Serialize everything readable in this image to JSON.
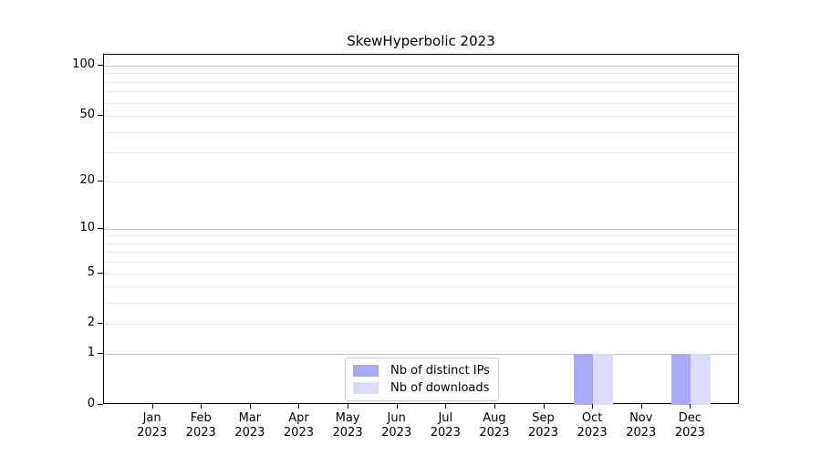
{
  "chart_data": {
    "type": "bar",
    "title": "SkewHyperbolic 2023",
    "categories": [
      "Jan\n2023",
      "Feb\n2023",
      "Mar\n2023",
      "Apr\n2023",
      "May\n2023",
      "Jun\n2023",
      "Jul\n2023",
      "Aug\n2023",
      "Sep\n2023",
      "Oct\n2023",
      "Nov\n2023",
      "Dec\n2023"
    ],
    "series": [
      {
        "name": "Nb of distinct IPs",
        "color": "#a9a9f5",
        "values": [
          0,
          0,
          0,
          0,
          0,
          0,
          0,
          0,
          0,
          1,
          0,
          1
        ]
      },
      {
        "name": "Nb of downloads",
        "color": "#dcdcf9",
        "values": [
          0,
          0,
          0,
          0,
          0,
          0,
          0,
          0,
          0,
          1,
          0,
          1
        ]
      }
    ],
    "xlabel": "",
    "ylabel": "",
    "yscale": "log1p",
    "ylim": [
      0,
      120
    ],
    "yticks": [
      0,
      1,
      2,
      5,
      10,
      20,
      50,
      100
    ],
    "grid": true,
    "grid_major_values": [
      1,
      10,
      100
    ],
    "grid_minor_values": [
      2,
      3,
      4,
      5,
      6,
      7,
      8,
      9,
      20,
      30,
      40,
      50,
      60,
      70,
      80,
      90
    ],
    "legend_position": "lower center",
    "colors": {
      "grid_major": "#c8c8c8",
      "grid_minor": "#ececec",
      "spine": "#000000",
      "legend_border": "#cccccc",
      "background": "#ffffff"
    }
  }
}
